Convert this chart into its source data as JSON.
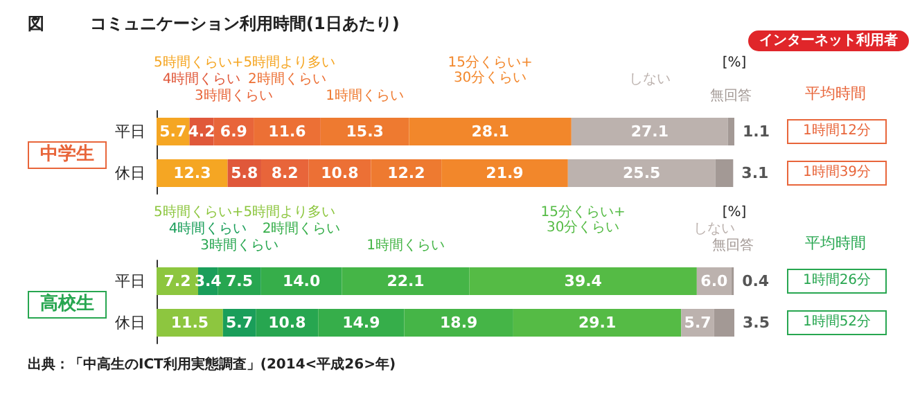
{
  "chart_data": [
    {
      "type": "bar",
      "title": "コミュニケーション利用時間(1日あたり)",
      "ylabel": "中学生",
      "orientation": "horizontal",
      "stacked": true,
      "data_labels": true,
      "legend": false,
      "categories": [
        "平日",
        "休日"
      ],
      "series": [
        {
          "name": "5時間くらい+5時間より多い",
          "color": "#f5a623",
          "values": [
            5.7,
            12.3
          ]
        },
        {
          "name": "4時間くらい",
          "color": "#e0583a",
          "values": [
            4.2,
            5.8
          ]
        },
        {
          "name": "3時間くらい",
          "color": "#e8653a",
          "values": [
            6.9,
            8.2
          ]
        },
        {
          "name": "2時間くらい",
          "color": "#ec7035",
          "values": [
            11.6,
            10.8
          ]
        },
        {
          "name": "1時間くらい",
          "color": "#ee7a30",
          "values": [
            15.3,
            12.2
          ]
        },
        {
          "name": "15分くらい+\n30分くらい",
          "color": "#f2872b",
          "values": [
            28.1,
            21.9
          ]
        },
        {
          "name": "しない",
          "color": "#bcb2ae",
          "values": [
            27.1,
            25.5
          ]
        },
        {
          "name": "無回答",
          "color": "#a39995",
          "values": [
            1.1,
            3.1
          ]
        }
      ],
      "annotations": [
        "[%]",
        "平均時間",
        "1時間12分",
        "1時間39分",
        "図",
        "インターネット利用者"
      ]
    },
    {
      "type": "bar",
      "ylabel": "高校生",
      "orientation": "horizontal",
      "stacked": true,
      "data_labels": true,
      "legend": false,
      "categories": [
        "平日",
        "休日"
      ],
      "series": [
        {
          "name": "5時間くらい+5時間より多い",
          "color": "#8dc63f",
          "values": [
            7.2,
            11.5
          ]
        },
        {
          "name": "4時間くらい",
          "color": "#1a9e5a",
          "values": [
            3.4,
            5.7
          ]
        },
        {
          "name": "3時間くらい",
          "color": "#27a650",
          "values": [
            7.5,
            10.8
          ]
        },
        {
          "name": "2時間くらい",
          "color": "#36ae4a",
          "values": [
            14.0,
            14.9
          ],
          "value_labels": [
            "14.0",
            "14.9"
          ]
        },
        {
          "name": "1時間くらい",
          "color": "#45b547",
          "values": [
            22.1,
            18.9
          ]
        },
        {
          "name": "15分くらい+\n30分くらい",
          "color": "#55bb45",
          "values": [
            39.4,
            29.1
          ]
        },
        {
          "name": "しない",
          "color": "#bcb2ae",
          "values": [
            6.0,
            5.7
          ],
          "value_labels": [
            "6.0",
            "5.7"
          ]
        },
        {
          "name": "無回答",
          "color": "#a39995",
          "values": [
            0.4,
            3.5
          ]
        }
      ],
      "annotations": [
        "[%]",
        "平均時間",
        "1時間26分",
        "1時間52分",
        "出典：「中高生のICT利用実態調査」(2014<平成26>年)"
      ]
    }
  ]
}
